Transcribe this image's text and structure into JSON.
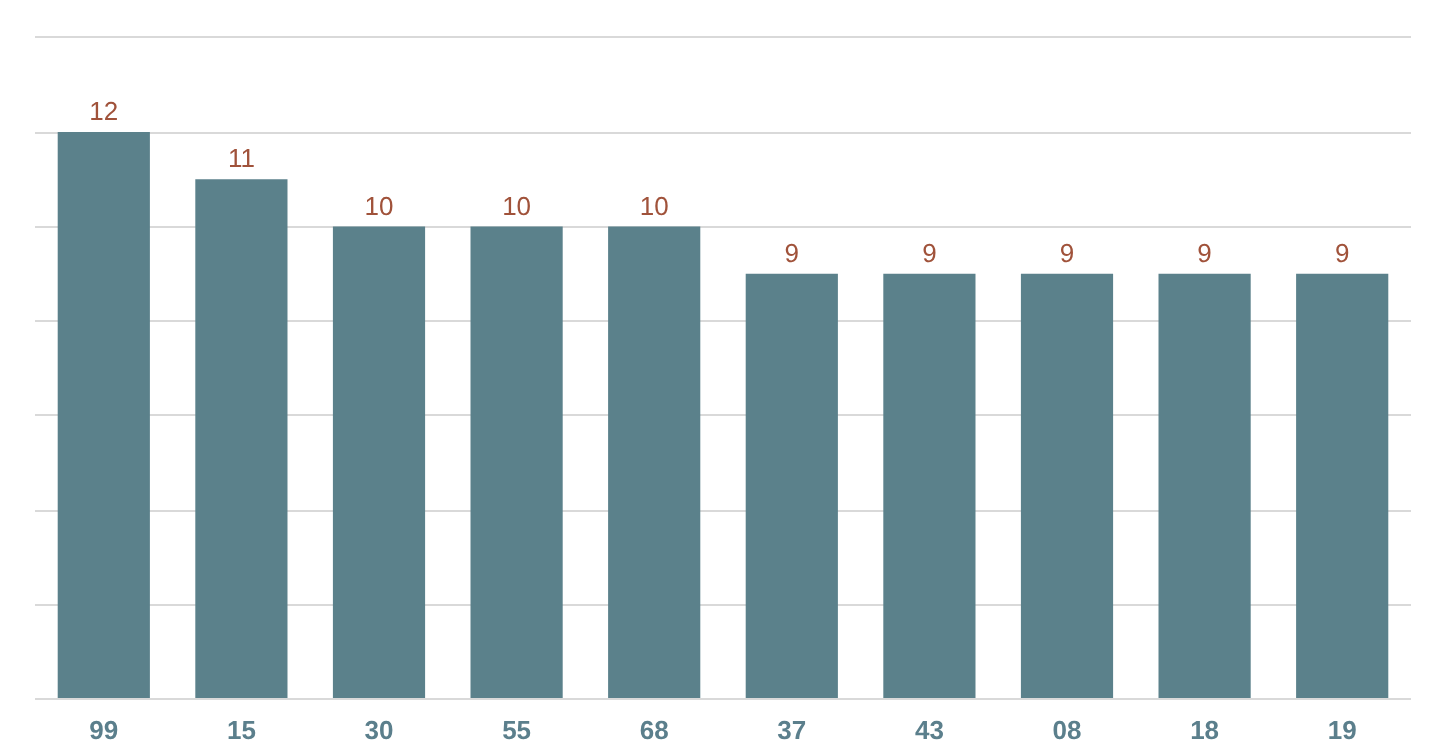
{
  "chart_data": {
    "type": "bar",
    "categories": [
      "99",
      "15",
      "30",
      "55",
      "68",
      "37",
      "43",
      "08",
      "18",
      "19"
    ],
    "values": [
      12,
      11,
      10,
      10,
      10,
      9,
      9,
      9,
      9,
      9
    ],
    "color": "#5b818b",
    "data_labels": true,
    "yticks": [
      {
        "value": 0,
        "label": null
      },
      {
        "value": 2,
        "label": null
      },
      {
        "value": 4,
        "label": null
      },
      {
        "value": 6,
        "label": null
      },
      {
        "value": 8,
        "label": null
      },
      {
        "value": 10,
        "label": null
      },
      {
        "value": 12,
        "label": null
      },
      {
        "value": 14,
        "label": null
      }
    ],
    "grid": "y",
    "tick_labels": "x"
  }
}
